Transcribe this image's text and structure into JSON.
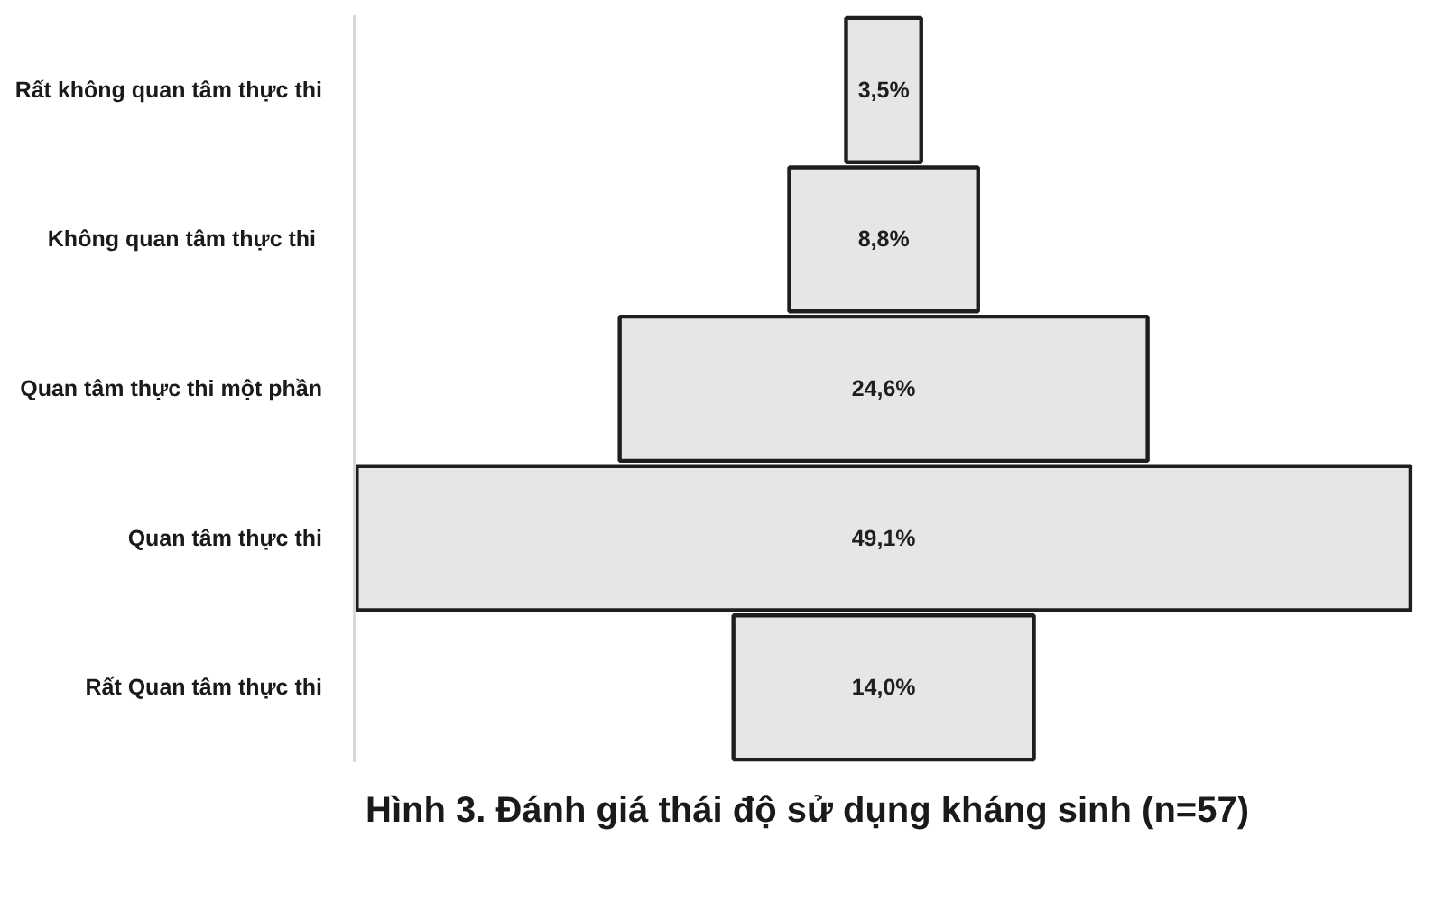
{
  "chart_data": {
    "type": "other",
    "title": "Hình 3. Đánh giá thái độ sử dụng kháng sinh (n=57)",
    "categories": [
      "Rất không quan tâm thực thi",
      "Không  quan tâm thực thi",
      "Quan tâm thực thi một phần",
      "Quan tâm thực thi",
      "Rất Quan tâm thực thi"
    ],
    "values": [
      3.5,
      8.8,
      24.6,
      49.1,
      14.0
    ],
    "value_labels": [
      "3,5%",
      "8,8%",
      "24,6%",
      "49,1%",
      "14,0%"
    ],
    "color": "#e6e6e6"
  }
}
